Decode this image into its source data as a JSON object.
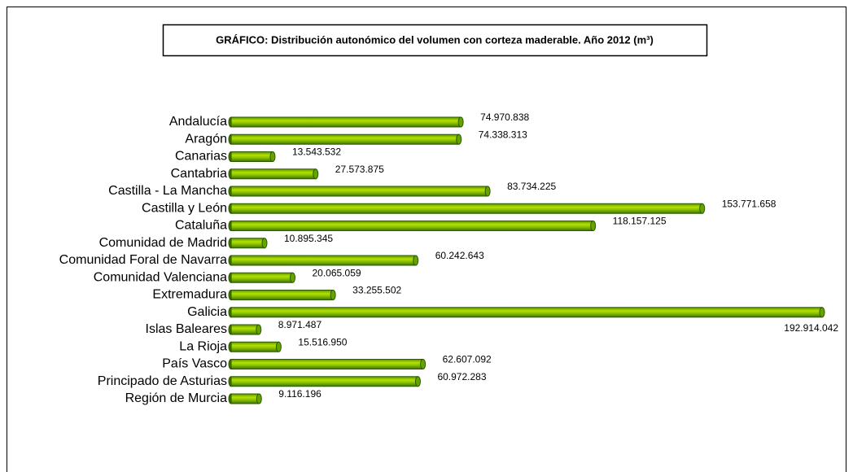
{
  "chart_data": {
    "type": "bar",
    "orientation": "horizontal",
    "title": "GRÁFICO: Distribución autonómico del volumen con corteza maderable. Año 2012 (m³)",
    "categories": [
      "Andalucía",
      "Aragón",
      "Canarias",
      "Cantabria",
      "Castilla - La Mancha",
      "Castilla y León",
      "Cataluña",
      "Comunidad de Madrid",
      "Comunidad Foral de Navarra",
      "Comunidad Valenciana",
      "Extremadura",
      "Galicia",
      "Islas Baleares",
      "La Rioja",
      "País Vasco",
      "Principado de Asturias",
      "Región de Murcia"
    ],
    "values": [
      74970838,
      74338313,
      13543532,
      27573875,
      83734225,
      153771658,
      118157125,
      10895345,
      60242643,
      20065059,
      33255502,
      192914042,
      8971487,
      15516950,
      62607092,
      60972283,
      9116196
    ],
    "value_labels": [
      "74.970.838",
      "74.338.313",
      "13.543.532",
      "27.573.875",
      "83.734.225",
      "153.771.658",
      "118.157.125",
      "10.895.345",
      "60.242.643",
      "20.065.059",
      "33.255.502",
      "192.914.042",
      "8.971.487",
      "15.516.950",
      "62.607.092",
      "60.972.283",
      "9.116.196"
    ],
    "color": "#66a300"
  }
}
